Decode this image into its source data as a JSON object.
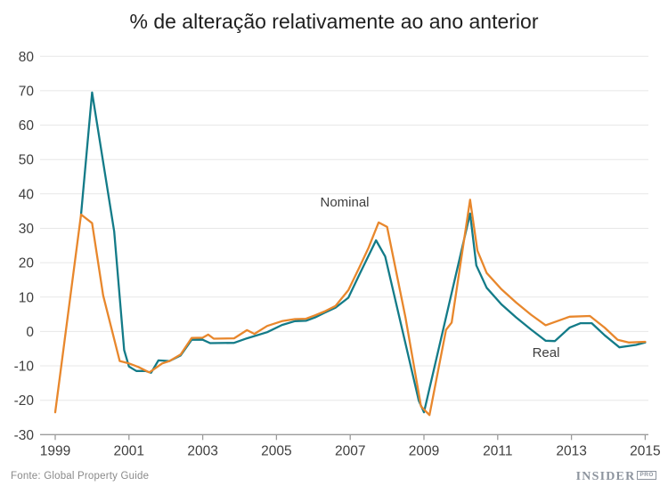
{
  "title": "% de alteração relativamente ao ano anterior",
  "footer": {
    "source": "Fonte: Global Property Guide",
    "logo": {
      "name": "InsiderPro",
      "main": "INSIDER",
      "badge": "PRO"
    }
  },
  "colors": {
    "nominal": "#E8872C",
    "real": "#137B88",
    "grid": "#E7E7E7",
    "axis": "#9B9B9B",
    "tick_text": "#3E3E3E",
    "title_text": "#1F1F1F",
    "source_text": "#8A8A8A",
    "logo_text": "#8D949E"
  },
  "chart_data": {
    "type": "line",
    "title": "% de alteração relativamente ao ano anterior",
    "xlabel": "",
    "ylabel": "",
    "xlim": [
      1999,
      2015
    ],
    "ylim": [
      -30,
      80
    ],
    "x_ticks": [
      1999,
      2001,
      2003,
      2005,
      2007,
      2009,
      2011,
      2013,
      2015
    ],
    "y_ticks": [
      80,
      70,
      60,
      50,
      40,
      30,
      20,
      10,
      0,
      -10,
      -20,
      -30
    ],
    "grid": true,
    "legend": "inline-labels",
    "series": [
      {
        "name": "Nominal",
        "color": "#E8872C",
        "points": [
          [
            1999.0,
            -23.5
          ],
          [
            1999.7,
            34.0
          ],
          [
            2000.0,
            31.5
          ],
          [
            2000.3,
            10.5
          ],
          [
            2000.75,
            -8.6
          ],
          [
            2001.0,
            -9.3
          ],
          [
            2001.25,
            -10.3
          ],
          [
            2001.55,
            -11.9
          ],
          [
            2001.9,
            -9.3
          ],
          [
            2002.1,
            -8.6
          ],
          [
            2002.4,
            -6.7
          ],
          [
            2002.7,
            -1.9
          ],
          [
            2003.0,
            -1.8
          ],
          [
            2003.15,
            -0.9
          ],
          [
            2003.3,
            -2.1
          ],
          [
            2003.85,
            -2.0
          ],
          [
            2004.2,
            0.4
          ],
          [
            2004.4,
            -0.7
          ],
          [
            2004.75,
            1.6
          ],
          [
            2005.15,
            3.0
          ],
          [
            2005.5,
            3.6
          ],
          [
            2005.8,
            3.7
          ],
          [
            2006.05,
            4.7
          ],
          [
            2006.3,
            5.8
          ],
          [
            2006.6,
            7.4
          ],
          [
            2006.95,
            12.0
          ],
          [
            2007.25,
            18.7
          ],
          [
            2007.5,
            24.4
          ],
          [
            2007.77,
            31.7
          ],
          [
            2008.0,
            30.4
          ],
          [
            2008.5,
            4.0
          ],
          [
            2008.92,
            -21.8
          ],
          [
            2009.15,
            -24.3
          ],
          [
            2009.6,
            0.5
          ],
          [
            2009.75,
            2.6
          ],
          [
            2010.25,
            38.3
          ],
          [
            2010.45,
            23.5
          ],
          [
            2010.7,
            17.0
          ],
          [
            2011.1,
            12.3
          ],
          [
            2011.5,
            8.4
          ],
          [
            2011.9,
            4.9
          ],
          [
            2012.3,
            1.8
          ],
          [
            2012.95,
            4.3
          ],
          [
            2013.5,
            4.5
          ],
          [
            2013.9,
            1.1
          ],
          [
            2014.25,
            -2.4
          ],
          [
            2014.55,
            -3.2
          ],
          [
            2015.0,
            -3.0
          ]
        ]
      },
      {
        "name": "Real",
        "color": "#137B88",
        "points": [
          [
            1999.7,
            34.0
          ],
          [
            2000.0,
            69.5
          ],
          [
            2000.6,
            29.1
          ],
          [
            2000.87,
            -5.4
          ],
          [
            2001.0,
            -10.2
          ],
          [
            2001.2,
            -11.5
          ],
          [
            2001.45,
            -11.5
          ],
          [
            2001.6,
            -12.0
          ],
          [
            2001.8,
            -8.4
          ],
          [
            2002.1,
            -8.6
          ],
          [
            2002.4,
            -7.0
          ],
          [
            2002.7,
            -2.4
          ],
          [
            2003.0,
            -2.4
          ],
          [
            2003.2,
            -3.4
          ],
          [
            2003.85,
            -3.3
          ],
          [
            2004.2,
            -2.0
          ],
          [
            2004.75,
            -0.2
          ],
          [
            2005.15,
            1.9
          ],
          [
            2005.5,
            3.0
          ],
          [
            2005.8,
            3.1
          ],
          [
            2006.05,
            4.1
          ],
          [
            2006.3,
            5.4
          ],
          [
            2006.6,
            6.9
          ],
          [
            2006.95,
            9.8
          ],
          [
            2007.25,
            16.6
          ],
          [
            2007.7,
            26.5
          ],
          [
            2007.95,
            21.8
          ],
          [
            2008.86,
            -20.1
          ],
          [
            2009.0,
            -23.5
          ],
          [
            2010.25,
            34.3
          ],
          [
            2010.42,
            19.2
          ],
          [
            2010.7,
            12.7
          ],
          [
            2011.1,
            7.9
          ],
          [
            2011.5,
            4.1
          ],
          [
            2011.9,
            0.6
          ],
          [
            2012.3,
            -2.7
          ],
          [
            2012.55,
            -2.8
          ],
          [
            2012.95,
            1.1
          ],
          [
            2013.25,
            2.4
          ],
          [
            2013.55,
            2.4
          ],
          [
            2013.9,
            -1.1
          ],
          [
            2014.3,
            -4.6
          ],
          [
            2014.75,
            -3.9
          ],
          [
            2015.0,
            -3.2
          ]
        ]
      }
    ]
  }
}
